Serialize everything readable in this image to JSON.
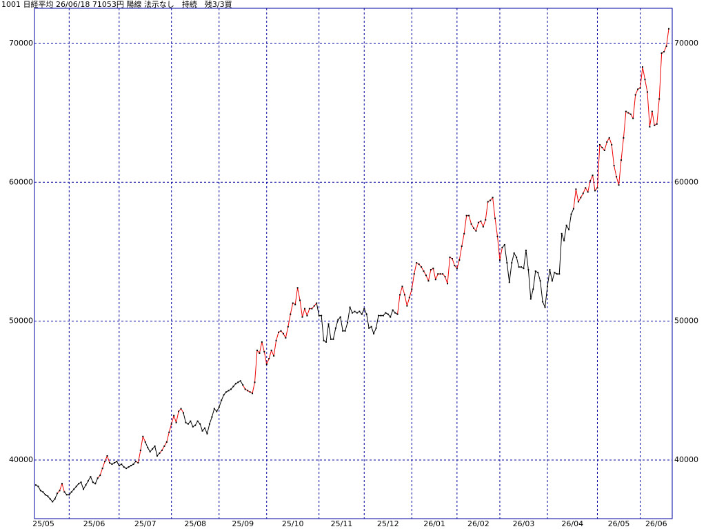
{
  "chart_data": {
    "type": "line",
    "title": "1001 日経平均 26/06/18 71053円 陽線 法示なし　持続　残3/3買",
    "categories": [
      "25/05",
      null,
      null,
      null,
      null,
      null,
      null,
      null,
      null,
      null,
      null,
      null,
      null,
      null,
      "25/06",
      null,
      null,
      null,
      null,
      null,
      null,
      null,
      null,
      null,
      null,
      null,
      null,
      null,
      null,
      null,
      null,
      null,
      null,
      null,
      null,
      "25/07",
      null,
      null,
      null,
      null,
      null,
      null,
      null,
      null,
      null,
      null,
      null,
      null,
      null,
      null,
      null,
      null,
      null,
      null,
      null,
      null,
      null,
      "25/08",
      null,
      null,
      null,
      null,
      null,
      null,
      null,
      null,
      null,
      null,
      null,
      null,
      null,
      null,
      null,
      null,
      null,
      null,
      null,
      "25/09",
      null,
      null,
      null,
      null,
      null,
      null,
      null,
      null,
      null,
      null,
      null,
      null,
      null,
      null,
      null,
      null,
      null,
      null,
      null,
      "25/10",
      null,
      null,
      null,
      null,
      null,
      null,
      null,
      null,
      null,
      null,
      null,
      null,
      null,
      null,
      null,
      null,
      null,
      null,
      null,
      null,
      null,
      "25/11",
      null,
      null,
      null,
      null,
      null,
      null,
      null,
      null,
      null,
      null,
      null,
      null,
      null,
      null,
      null,
      null,
      null,
      null,
      "25/12",
      null,
      null,
      null,
      null,
      null,
      null,
      null,
      null,
      null,
      null,
      null,
      null,
      null,
      null,
      null,
      null,
      null,
      null,
      null,
      "26/01",
      null,
      null,
      null,
      null,
      null,
      null,
      null,
      null,
      null,
      null,
      null,
      null,
      null,
      null,
      null,
      null,
      null,
      null,
      "26/02",
      null,
      null,
      null,
      null,
      null,
      null,
      null,
      null,
      null,
      null,
      null,
      null,
      null,
      null,
      null,
      null,
      null,
      "26/03",
      null,
      null,
      null,
      null,
      null,
      null,
      null,
      null,
      null,
      null,
      null,
      null,
      null,
      null,
      null,
      null,
      null,
      null,
      null,
      "26/04",
      null,
      null,
      null,
      null,
      null,
      null,
      null,
      null,
      null,
      null,
      null,
      null,
      null,
      null,
      null,
      null,
      null,
      null,
      null,
      null,
      "26/05",
      null,
      null,
      null,
      null,
      null,
      null,
      null,
      null,
      null,
      null,
      null,
      null,
      null,
      null,
      null,
      null,
      null,
      "26/06",
      null,
      null,
      null,
      null,
      null,
      null,
      null,
      null,
      null,
      null,
      null,
      null
    ],
    "values": [
      38200,
      38100,
      37800,
      37700,
      37500,
      37400,
      37200,
      37000,
      37200,
      37600,
      37800,
      38300,
      37700,
      37500,
      37500,
      37700,
      37900,
      38100,
      38300,
      38400,
      37900,
      38200,
      38500,
      38800,
      38400,
      38300,
      38700,
      38900,
      39400,
      39900,
      40300,
      39800,
      39700,
      39800,
      39900,
      39600,
      39700,
      39500,
      39400,
      39500,
      39600,
      39700,
      39900,
      39800,
      40700,
      41700,
      41300,
      40900,
      40600,
      40800,
      41000,
      40300,
      40500,
      40700,
      41000,
      41300,
      42000,
      42600,
      43200,
      42700,
      43500,
      43700,
      43400,
      42700,
      42600,
      42800,
      42400,
      42500,
      42800,
      42600,
      42100,
      42300,
      41900,
      42600,
      43100,
      43700,
      43500,
      43800,
      44300,
      44700,
      44900,
      45000,
      45100,
      45300,
      45500,
      45600,
      45700,
      45400,
      45100,
      45000,
      44900,
      44800,
      45600,
      47900,
      47700,
      48500,
      47800,
      46900,
      47300,
      47900,
      47500,
      48600,
      49200,
      49300,
      49100,
      48800,
      49600,
      50500,
      51300,
      51200,
      52400,
      51500,
      50300,
      50900,
      50400,
      50900,
      50900,
      51100,
      51300,
      50400,
      50400,
      48600,
      48500,
      49800,
      48700,
      48700,
      49500,
      50100,
      50300,
      49300,
      49300,
      49900,
      51000,
      50600,
      50700,
      50600,
      50700,
      50500,
      50900,
      50500,
      49500,
      49600,
      49100,
      49500,
      50400,
      50400,
      50400,
      50600,
      50500,
      50300,
      50800,
      50600,
      50500,
      51900,
      52500,
      51900,
      51100,
      51700,
      52300,
      53400,
      54200,
      54100,
      53900,
      53600,
      53300,
      52900,
      53700,
      53800,
      53000,
      53400,
      53400,
      53400,
      53200,
      52700,
      54600,
      54500,
      54000,
      53800,
      54400,
      55400,
      56300,
      57600,
      57600,
      57000,
      56700,
      56500,
      57100,
      57200,
      56800,
      57300,
      58600,
      58700,
      58900,
      57400,
      56100,
      54400,
      55300,
      55500,
      54200,
      52800,
      54200,
      54900,
      54600,
      53900,
      53900,
      53800,
      55100,
      53700,
      51600,
      52300,
      53600,
      53500,
      52900,
      51400,
      51000,
      52500,
      53700,
      52900,
      53500,
      53400,
      53400,
      56300,
      55800,
      56900,
      56600,
      57700,
      58100,
      59500,
      58600,
      58900,
      59200,
      59600,
      59300,
      60100,
      60500,
      59400,
      59600,
      62700,
      62500,
      62300,
      62900,
      63200,
      62700,
      61200,
      60400,
      59800,
      61600,
      63200,
      65100,
      65000,
      64900,
      64600,
      66300,
      66700,
      66800,
      68300,
      67400,
      66500,
      64000,
      65100,
      64100,
      64200,
      66000,
      69300,
      69400,
      69800,
      71053
    ],
    "colors": [
      "#000",
      "#000",
      "#000",
      "#000",
      "#000",
      "#000",
      "#000",
      "#000",
      "#000",
      "#000",
      "#e00",
      "#e00",
      "#e00",
      "#000",
      "#000",
      "#000",
      "#000",
      "#000",
      "#000",
      "#000",
      "#000",
      "#000",
      "#000",
      "#000",
      "#000",
      "#000",
      "#000",
      "#e00",
      "#e00",
      "#e00",
      "#e00",
      "#e00",
      "#000",
      "#000",
      "#000",
      "#000",
      "#000",
      "#000",
      "#000",
      "#000",
      "#000",
      "#000",
      "#000",
      "#e00",
      "#e00",
      "#e00",
      "#e00",
      "#000",
      "#000",
      "#000",
      "#000",
      "#000",
      "#000",
      "#e00",
      "#e00",
      "#e00",
      "#e00",
      "#e00",
      "#e00",
      "#e00",
      "#e00",
      "#e00",
      "#e00",
      "#000",
      "#000",
      "#000",
      "#000",
      "#000",
      "#000",
      "#000",
      "#000",
      "#000",
      "#000",
      "#000",
      "#000",
      "#000",
      "#000",
      "#000",
      "#000",
      "#000",
      "#000",
      "#000",
      "#000",
      "#000",
      "#000",
      "#000",
      "#000",
      "#000",
      "#e00",
      "#e00",
      "#e00",
      "#e00",
      "#e00",
      "#e00",
      "#e00",
      "#e00",
      "#e00",
      "#e00",
      "#e00",
      "#e00",
      "#e00",
      "#e00",
      "#e00",
      "#e00",
      "#e00",
      "#e00",
      "#e00",
      "#e00",
      "#e00",
      "#e00",
      "#e00",
      "#e00",
      "#e00",
      "#e00",
      "#e00",
      "#e00",
      "#e00",
      "#e00",
      "#e00",
      "#000",
      "#000",
      "#000",
      "#000",
      "#000",
      "#000",
      "#000",
      "#000",
      "#000",
      "#000",
      "#000",
      "#000",
      "#000",
      "#000",
      "#000",
      "#000",
      "#000",
      "#000",
      "#000",
      "#000",
      "#000",
      "#000",
      "#000",
      "#000",
      "#000",
      "#000",
      "#000",
      "#000",
      "#000",
      "#000",
      "#000",
      "#000",
      "#000",
      "#000",
      "#e00",
      "#e00",
      "#e00",
      "#e00",
      "#e00",
      "#e00",
      "#e00",
      "#e00",
      "#e00",
      "#e00",
      "#e00",
      "#e00",
      "#e00",
      "#e00",
      "#e00",
      "#e00",
      "#e00",
      "#e00",
      "#e00",
      "#e00",
      "#e00",
      "#e00",
      "#e00",
      "#e00",
      "#e00",
      "#e00",
      "#e00",
      "#e00",
      "#e00",
      "#e00",
      "#e00",
      "#e00",
      "#e00",
      "#e00",
      "#e00",
      "#e00",
      "#e00",
      "#e00",
      "#e00",
      "#e00",
      "#e00",
      "#e00",
      "#e00",
      "#e00",
      "#000",
      "#000",
      "#000",
      "#000",
      "#000",
      "#000",
      "#000",
      "#000",
      "#000",
      "#000",
      "#000",
      "#000",
      "#000",
      "#000",
      "#000",
      "#000",
      "#000",
      "#000",
      "#000",
      "#000",
      "#000",
      "#000",
      "#000",
      "#000",
      "#000",
      "#000",
      "#000",
      "#000",
      "#000",
      "#000",
      "#e00",
      "#e00",
      "#e00",
      "#e00",
      "#e00",
      "#e00",
      "#e00",
      "#e00",
      "#e00",
      "#e00",
      "#e00",
      "#e00",
      "#e00",
      "#e00",
      "#e00",
      "#e00",
      "#e00",
      "#e00",
      "#e00",
      "#e00",
      "#e00",
      "#e00",
      "#e00",
      "#e00",
      "#e00",
      "#e00",
      "#e00",
      "#e00",
      "#e00",
      "#e00",
      "#e00",
      "#e00",
      "#e00",
      "#e00",
      "#e00",
      "#e00",
      "#e00",
      "#e00",
      "#e00",
      "#e00"
    ],
    "point_color": "#000000",
    "ylim": [
      35780,
      72530
    ],
    "yticks": [
      40000,
      50000,
      60000,
      70000
    ],
    "grid": true
  }
}
